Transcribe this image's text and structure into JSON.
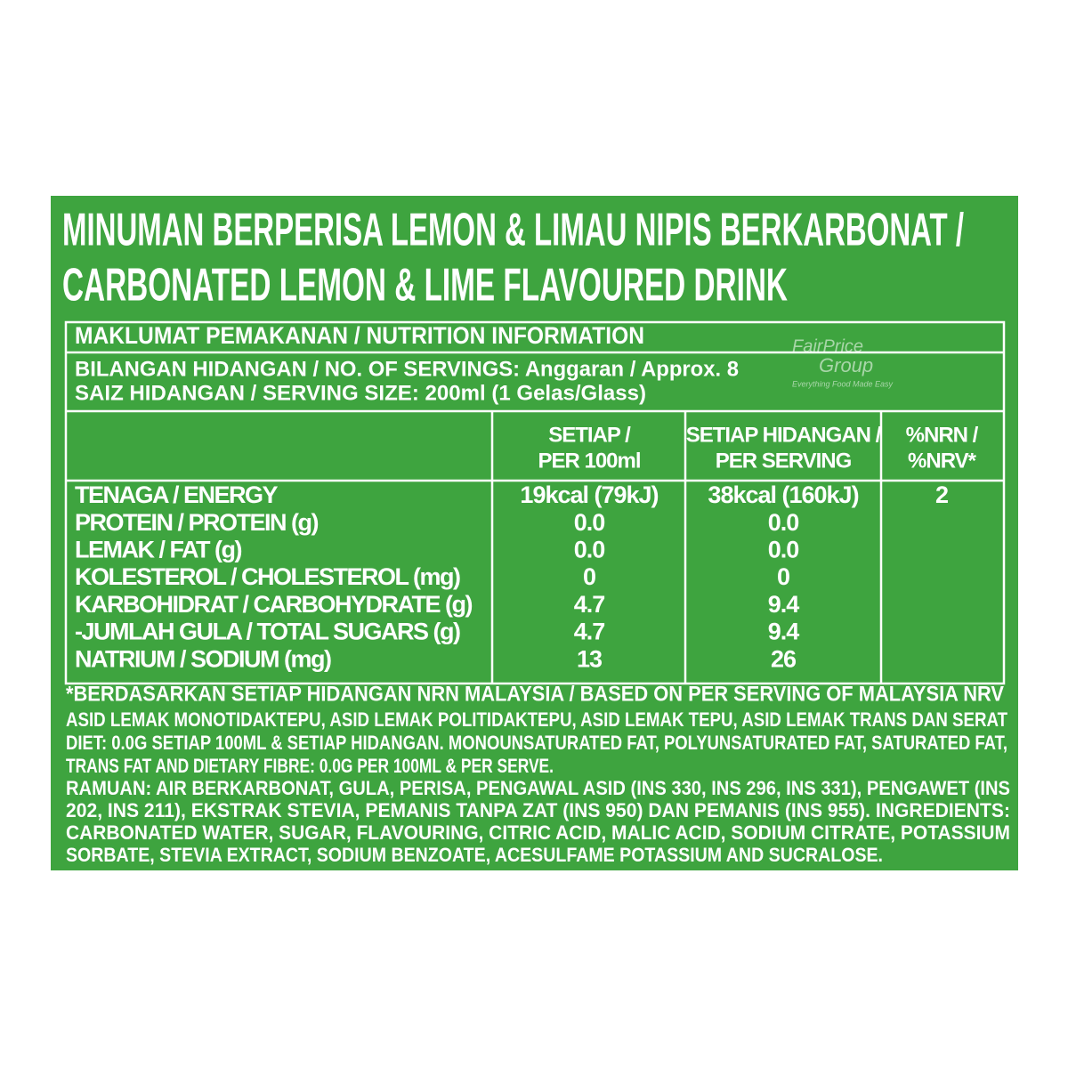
{
  "title": {
    "lines": [
      "MINUMAN BERPERISA LEMON & LIMAU NIPIS BERKARBONAT /",
      "CARBONATED LEMON & LIME FLAVOURED DRINK"
    ]
  },
  "table": {
    "heading": "MAKLUMAT PEMAKANAN / NUTRITION INFORMATION",
    "servings": "BILANGAN HIDANGAN / NO. OF SERVINGS: Anggaran / Approx. 8",
    "serving_size": "SAIZ HIDANGAN / SERVING SIZE: 200ml (1 Gelas/Glass)",
    "columns": [
      [
        "SETIAP /",
        "PER 100ml"
      ],
      [
        "SETIAP HIDANGAN /",
        "PER SERVING"
      ],
      [
        "%NRN /",
        "%NRV*"
      ]
    ],
    "rows": [
      {
        "label": "TENAGA / ENERGY",
        "per_100ml": "19kcal (79kJ)",
        "per_serving": "38kcal (160kJ)",
        "nrv": "2"
      },
      {
        "label": "PROTEIN / PROTEIN (g)",
        "per_100ml": "0.0",
        "per_serving": "0.0"
      },
      {
        "label": "LEMAK / FAT (g)",
        "per_100ml": "0.0",
        "per_serving": "0.0"
      },
      {
        "label": "KOLESTEROL / CHOLESTEROL (mg)",
        "per_100ml": "0",
        "per_serving": "0"
      },
      {
        "label": "KARBOHIDRAT / CARBOHYDRATE (g)",
        "per_100ml": "4.7",
        "per_serving": "9.4"
      },
      {
        "label": "-JUMLAH GULA / TOTAL SUGARS (g)",
        "per_100ml": "4.7",
        "per_serving": "9.4"
      },
      {
        "label": "NATRIUM / SODIUM (mg)",
        "per_100ml": "13",
        "per_serving": "26"
      }
    ]
  },
  "footnote": "*BERDASARKAN SETIAP HIDANGAN NRN MALAYSIA / BASED ON PER SERVING OF MALAYSIA NRV",
  "notes": [
    "ASID LEMAK MONOTIDAKTEPU, ASID LEMAK POLITIDAKTEPU, ASID LEMAK TEPU, ASID LEMAK TRANS DAN SERAT",
    "DIET: 0.0G SETIAP 100ML & SETIAP HIDANGAN. MONOUNSATURATED FAT, POLYUNSATURATED FAT, SATURATED FAT,",
    "TRANS FAT AND DIETARY FIBRE: 0.0G PER 100ML & PER SERVE."
  ],
  "ingredients": [
    "RAMUAN: AIR BERKARBONAT, GULA, PERISA, PENGAWAL ASID (INS 330, INS 296, INS 331), PENGAWET (INS",
    "202, INS 211), EKSTRAK STEVIA, PEMANIS TANPA ZAT (INS 950) DAN PEMANIS (INS 955). INGREDIENTS:",
    "CARBONATED WATER, SUGAR, FLAVOURING, CITRIC ACID, MALIC ACID, SODIUM CITRATE, POTASSIUM",
    "SORBATE, STEVIA EXTRACT, SODIUM BENZOATE, ACESULFAME POTASSIUM AND SUCRALOSE."
  ],
  "watermark": {
    "brand": "FairPrice",
    "group": "Group",
    "tagline": "Everything Food Made Easy"
  }
}
